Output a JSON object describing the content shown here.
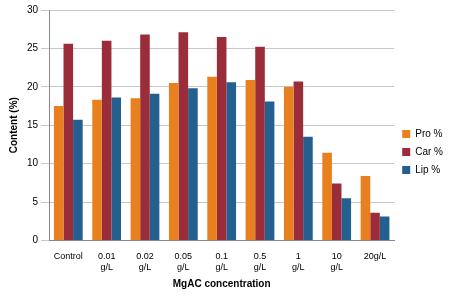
{
  "chart_data": {
    "type": "bar",
    "x_label": "MgAC concentration",
    "y_label": "Content (%)",
    "categories": [
      "Control",
      "0.01 g/L",
      "0.02 g/L",
      "0.05 g/L",
      "0.1 g/L",
      "0.5 g/L",
      "1 g/L",
      "10 g/L",
      "20g/L"
    ],
    "series": [
      {
        "name": "Pro %",
        "color": "#e8801f",
        "values": [
          17.5,
          18.3,
          18.5,
          20.5,
          21.3,
          20.9,
          20.0,
          11.4,
          8.4
        ]
      },
      {
        "name": "Car %",
        "color": "#9b2d3a",
        "values": [
          25.6,
          26.0,
          26.8,
          27.1,
          26.5,
          25.2,
          20.7,
          7.4,
          3.6
        ]
      },
      {
        "name": "Lip %",
        "color": "#23608f",
        "values": [
          15.7,
          18.6,
          19.1,
          19.8,
          20.6,
          18.1,
          13.5,
          5.5,
          3.1
        ]
      }
    ],
    "ylim": [
      0,
      30
    ],
    "yticks": [
      0,
      5,
      10,
      15,
      20,
      25,
      30
    ],
    "grid": true,
    "legend": "right"
  }
}
